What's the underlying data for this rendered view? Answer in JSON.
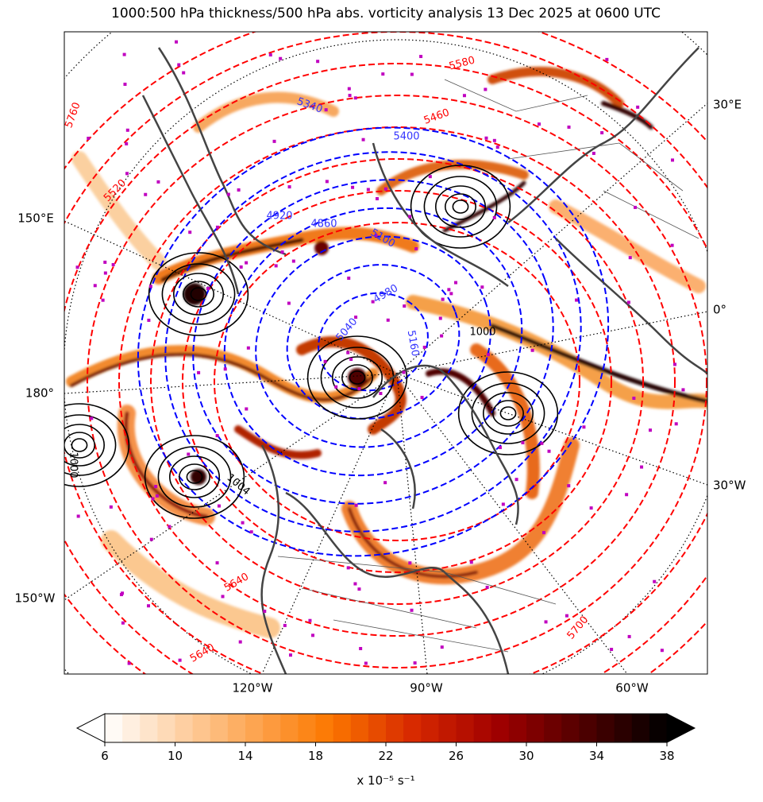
{
  "title": "1000:500 hPa thickness/500 hPa abs. vorticity analysis 13 Dec 2025 at 0600 UTC",
  "map": {
    "left_labels": [
      "150°E",
      "180°",
      "150°W"
    ],
    "right_labels": [
      "30°E",
      "0°",
      "30°W"
    ],
    "bottom_labels": [
      "120°W",
      "90°W",
      "60°W"
    ]
  },
  "contour_labels": [
    "5760",
    "5520",
    "5340",
    "5460",
    "5400",
    "4920",
    "4860",
    "5100",
    "4980",
    "5040",
    "5160",
    "5700",
    "5640",
    "5640",
    "1004",
    "1000",
    "1000",
    "5580"
  ],
  "colorbar": {
    "lim": [
      6,
      38
    ],
    "ticks": [
      6,
      10,
      14,
      18,
      22,
      26,
      30,
      34,
      38
    ],
    "label": "x 10⁻⁵ s⁻¹"
  }
}
